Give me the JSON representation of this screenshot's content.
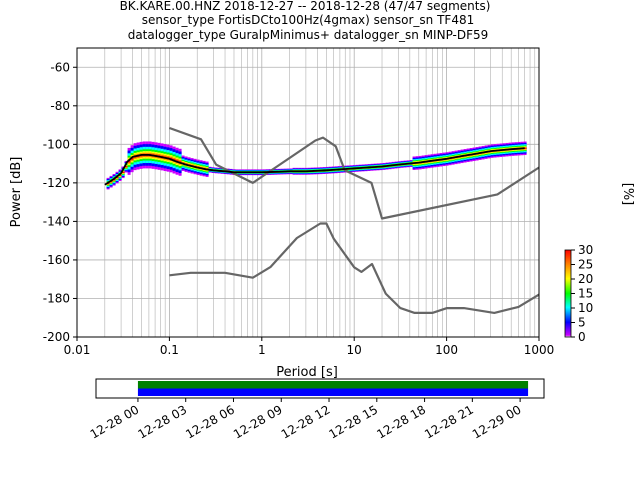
{
  "chart_data": [
    {
      "type": "heatmap",
      "title_lines": [
        "BK.KARE.00.HNZ   2018-12-27 -- 2018-12-28  (47/47 segments)",
        "sensor_type FortisDCto100Hz(4gmax) sensor_sn TF481",
        "datalogger_type GuralpMinimus+ datalogger_sn MINP-DF59"
      ],
      "xlabel": "Period [s]",
      "ylabel": "Power [dB]",
      "xscale": "log",
      "xlim": [
        0.01,
        1000
      ],
      "ylim": [
        -200,
        -50
      ],
      "x_tick_labels": [
        "0.01",
        "0.1",
        "1",
        "10",
        "100",
        "1000"
      ],
      "y_tick_labels": [
        "-200",
        "-180",
        "-160",
        "-140",
        "-120",
        "-100",
        "-80",
        "-60"
      ],
      "grid": true,
      "colorbar": {
        "label": "[%]",
        "range": [
          0,
          30
        ],
        "tick_labels": [
          "0",
          "5",
          "10",
          "15",
          "20",
          "25",
          "30"
        ],
        "colors": [
          "#ffffff",
          "#cc00ff",
          "#0000ff",
          "#00ffff",
          "#00ff00",
          "#ffff00",
          "#ff7f00",
          "#ff0000"
        ]
      },
      "series": [
        {
          "name": "NHNM",
          "color": "#666666",
          "x": [
            0.1,
            0.22,
            0.32,
            0.8,
            3.8,
            4.6,
            6.3,
            7.9,
            15.4,
            20,
            354.8,
            1000
          ],
          "y": [
            -91.5,
            -97.4,
            -110.5,
            -120,
            -98,
            -96.5,
            -101,
            -113.5,
            -120,
            -138.5,
            -126,
            -112
          ]
        },
        {
          "name": "NLNM",
          "color": "#666666",
          "x": [
            0.1,
            0.17,
            0.4,
            0.8,
            1.24,
            2.4,
            4.3,
            5,
            6,
            10,
            12,
            15.6,
            21.9,
            31.6,
            45,
            70,
            101,
            154,
            328,
            600,
            1000
          ],
          "y": [
            -168,
            -166.7,
            -166.7,
            -169.2,
            -163.7,
            -148.6,
            -141.1,
            -141.1,
            -149,
            -163.8,
            -166.2,
            -162.1,
            -177.5,
            -185,
            -187.5,
            -187.5,
            -185,
            -185,
            -187.5,
            -184.4,
            -178
          ]
        },
        {
          "name": "mode",
          "color": "#000000",
          "x": [
            0.02,
            0.025,
            0.03,
            0.035,
            0.04,
            0.05,
            0.06,
            0.07,
            0.08,
            0.1,
            0.12,
            0.15,
            0.2,
            0.25,
            0.3,
            0.4,
            0.5,
            0.7,
            1,
            2,
            3,
            5,
            7,
            10,
            20,
            30,
            50,
            70,
            100,
            150,
            200,
            300,
            500,
            700
          ],
          "y": [
            -121,
            -118,
            -115,
            -109,
            -106.5,
            -105.5,
            -105.5,
            -106,
            -106.5,
            -107.5,
            -109,
            -110.5,
            -112,
            -113,
            -113.5,
            -114,
            -114.5,
            -114.5,
            -114.5,
            -114,
            -114,
            -113.5,
            -113,
            -112.5,
            -111.5,
            -110.5,
            -109.5,
            -108.5,
            -107.5,
            -106,
            -105,
            -103.5,
            -102.5,
            -102
          ]
        }
      ]
    },
    {
      "type": "heatmap",
      "title": "",
      "x_tick_labels": [
        "12-28 00",
        "12-28 03",
        "12-28 06",
        "12-28 09",
        "12-28 12",
        "12-28 15",
        "12-28 18",
        "12-28 21",
        "12-29 00"
      ],
      "xlim": [
        "2018-12-27 21:22",
        "2018-12-29 01:30"
      ],
      "bars": [
        {
          "name": "data",
          "color": "#008000",
          "start": "2018-12-28 00:00",
          "end": "2018-12-29 00:30"
        },
        {
          "name": "psd",
          "color": "#0000ff",
          "start": "2018-12-28 00:00",
          "end": "2018-12-29 00:30"
        }
      ]
    }
  ]
}
